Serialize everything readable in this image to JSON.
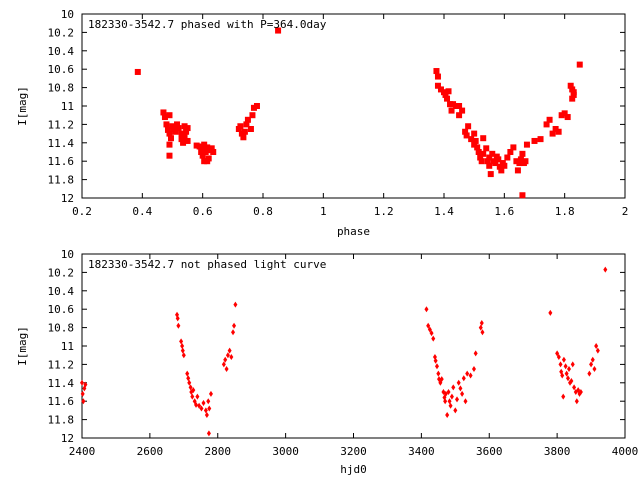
{
  "colors": {
    "points": "#ff0000",
    "axes": "#000000",
    "background": "#ffffff"
  },
  "chart_data": [
    {
      "type": "scatter",
      "title": "182330-3542.7 phased with P=364.0day",
      "xlabel": "phase",
      "ylabel": "I[mag]",
      "xlim": [
        0.2,
        2.0
      ],
      "ylim": [
        10.0,
        12.0
      ],
      "y_inverted": true,
      "xticks": [
        "0.2",
        "0.4",
        "0.6",
        "0.8",
        "1",
        "1.2",
        "1.4",
        "1.6",
        "1.8",
        "2"
      ],
      "yticks": [
        "10",
        "10.2",
        "10.4",
        "10.6",
        "10.8",
        "11",
        "11.2",
        "11.4",
        "11.6",
        "11.8",
        "12"
      ],
      "marker": "filled-square",
      "points": [
        [
          0.385,
          10.63
        ],
        [
          0.47,
          11.07
        ],
        [
          0.475,
          11.12
        ],
        [
          0.48,
          11.2
        ],
        [
          0.485,
          11.26
        ],
        [
          0.49,
          11.3
        ],
        [
          0.495,
          11.35
        ],
        [
          0.49,
          11.42
        ],
        [
          0.49,
          11.54
        ],
        [
          0.49,
          11.1
        ],
        [
          0.5,
          11.22
        ],
        [
          0.505,
          11.25
        ],
        [
          0.51,
          11.28
        ],
        [
          0.515,
          11.2
        ],
        [
          0.52,
          11.24
        ],
        [
          0.53,
          11.3
        ],
        [
          0.53,
          11.36
        ],
        [
          0.535,
          11.4
        ],
        [
          0.54,
          11.22
        ],
        [
          0.54,
          11.34
        ],
        [
          0.545,
          11.28
        ],
        [
          0.55,
          11.24
        ],
        [
          0.55,
          11.38
        ],
        [
          0.58,
          11.43
        ],
        [
          0.59,
          11.44
        ],
        [
          0.595,
          11.5
        ],
        [
          0.6,
          11.46
        ],
        [
          0.6,
          11.54
        ],
        [
          0.605,
          11.42
        ],
        [
          0.61,
          11.5
        ],
        [
          0.615,
          11.45
        ],
        [
          0.62,
          11.48
        ],
        [
          0.63,
          11.46
        ],
        [
          0.605,
          11.6
        ],
        [
          0.615,
          11.6
        ],
        [
          0.62,
          11.57
        ],
        [
          0.635,
          11.5
        ],
        [
          0.72,
          11.25
        ],
        [
          0.725,
          11.22
        ],
        [
          0.73,
          11.3
        ],
        [
          0.735,
          11.34
        ],
        [
          0.74,
          11.28
        ],
        [
          0.745,
          11.2
        ],
        [
          0.75,
          11.15
        ],
        [
          0.76,
          11.25
        ],
        [
          0.765,
          11.1
        ],
        [
          0.77,
          11.02
        ],
        [
          0.78,
          11.0
        ],
        [
          0.85,
          10.18
        ],
        [
          1.375,
          10.62
        ],
        [
          1.38,
          10.68
        ],
        [
          1.38,
          10.78
        ],
        [
          1.39,
          10.82
        ],
        [
          1.4,
          10.85
        ],
        [
          1.405,
          10.88
        ],
        [
          1.41,
          10.92
        ],
        [
          1.415,
          10.84
        ],
        [
          1.42,
          10.98
        ],
        [
          1.425,
          11.05
        ],
        [
          1.43,
          10.98
        ],
        [
          1.44,
          11.0
        ],
        [
          1.45,
          11.0
        ],
        [
          1.45,
          11.1
        ],
        [
          1.46,
          11.05
        ],
        [
          1.47,
          11.28
        ],
        [
          1.475,
          11.32
        ],
        [
          1.48,
          11.22
        ],
        [
          1.49,
          11.36
        ],
        [
          1.5,
          11.3
        ],
        [
          1.5,
          11.42
        ],
        [
          1.505,
          11.38
        ],
        [
          1.51,
          11.45
        ],
        [
          1.515,
          11.5
        ],
        [
          1.52,
          11.56
        ],
        [
          1.525,
          11.6
        ],
        [
          1.53,
          11.35
        ],
        [
          1.53,
          11.52
        ],
        [
          1.54,
          11.46
        ],
        [
          1.545,
          11.6
        ],
        [
          1.55,
          11.56
        ],
        [
          1.55,
          11.65
        ],
        [
          1.555,
          11.74
        ],
        [
          1.56,
          11.52
        ],
        [
          1.565,
          11.6
        ],
        [
          1.57,
          11.62
        ],
        [
          1.575,
          11.55
        ],
        [
          1.58,
          11.58
        ],
        [
          1.585,
          11.66
        ],
        [
          1.59,
          11.7
        ],
        [
          1.595,
          11.62
        ],
        [
          1.6,
          11.65
        ],
        [
          1.61,
          11.56
        ],
        [
          1.62,
          11.5
        ],
        [
          1.63,
          11.45
        ],
        [
          1.64,
          11.6
        ],
        [
          1.645,
          11.7
        ],
        [
          1.65,
          11.62
        ],
        [
          1.655,
          11.58
        ],
        [
          1.66,
          11.52
        ],
        [
          1.665,
          11.62
        ],
        [
          1.66,
          11.97
        ],
        [
          1.67,
          11.6
        ],
        [
          1.675,
          11.42
        ],
        [
          1.7,
          11.38
        ],
        [
          1.72,
          11.36
        ],
        [
          1.74,
          11.2
        ],
        [
          1.75,
          11.15
        ],
        [
          1.76,
          11.3
        ],
        [
          1.77,
          11.25
        ],
        [
          1.78,
          11.28
        ],
        [
          1.79,
          11.1
        ],
        [
          1.8,
          11.08
        ],
        [
          1.81,
          11.12
        ],
        [
          1.82,
          10.78
        ],
        [
          1.825,
          10.82
        ],
        [
          1.83,
          10.88
        ],
        [
          1.825,
          10.92
        ],
        [
          1.83,
          10.85
        ],
        [
          1.85,
          10.55
        ]
      ]
    },
    {
      "type": "scatter",
      "title": "182330-3542.7 not phased light curve",
      "xlabel": "hjd0",
      "ylabel": "I[mag]",
      "xlim": [
        2400,
        4000
      ],
      "ylim": [
        10.0,
        12.0
      ],
      "y_inverted": true,
      "xticks": [
        "2400",
        "2600",
        "2800",
        "3000",
        "3200",
        "3400",
        "3600",
        "3800",
        "4000"
      ],
      "yticks": [
        "10",
        "10.2",
        "10.4",
        "10.6",
        "10.8",
        "11",
        "11.2",
        "11.4",
        "11.6",
        "11.8",
        "12"
      ],
      "marker": "small-diamond",
      "points": [
        [
          2400,
          11.4
        ],
        [
          2402,
          11.52
        ],
        [
          2404,
          11.6
        ],
        [
          2407,
          11.46
        ],
        [
          2410,
          11.42
        ],
        [
          2680,
          10.66
        ],
        [
          2682,
          10.7
        ],
        [
          2684,
          10.78
        ],
        [
          2692,
          10.95
        ],
        [
          2695,
          11.0
        ],
        [
          2697,
          11.05
        ],
        [
          2700,
          11.1
        ],
        [
          2710,
          11.3
        ],
        [
          2713,
          11.35
        ],
        [
          2716,
          11.4
        ],
        [
          2720,
          11.45
        ],
        [
          2722,
          11.5
        ],
        [
          2725,
          11.55
        ],
        [
          2728,
          11.48
        ],
        [
          2732,
          11.6
        ],
        [
          2736,
          11.64
        ],
        [
          2740,
          11.55
        ],
        [
          2745,
          11.65
        ],
        [
          2752,
          11.68
        ],
        [
          2758,
          11.62
        ],
        [
          2765,
          11.7
        ],
        [
          2768,
          11.75
        ],
        [
          2772,
          11.6
        ],
        [
          2775,
          11.68
        ],
        [
          2780,
          11.52
        ],
        [
          2774,
          11.95
        ],
        [
          2818,
          11.2
        ],
        [
          2822,
          11.15
        ],
        [
          2826,
          11.25
        ],
        [
          2830,
          11.1
        ],
        [
          2835,
          11.05
        ],
        [
          2840,
          11.12
        ],
        [
          2845,
          10.85
        ],
        [
          2848,
          10.78
        ],
        [
          2852,
          10.55
        ],
        [
          3415,
          10.6
        ],
        [
          3420,
          10.78
        ],
        [
          3425,
          10.82
        ],
        [
          3430,
          10.86
        ],
        [
          3435,
          10.92
        ],
        [
          3440,
          11.12
        ],
        [
          3442,
          11.16
        ],
        [
          3446,
          11.22
        ],
        [
          3450,
          11.3
        ],
        [
          3452,
          11.36
        ],
        [
          3456,
          11.4
        ],
        [
          3460,
          11.36
        ],
        [
          3465,
          11.5
        ],
        [
          3468,
          11.56
        ],
        [
          3470,
          11.6
        ],
        [
          3472,
          11.52
        ],
        [
          3476,
          11.75
        ],
        [
          3480,
          11.5
        ],
        [
          3483,
          11.6
        ],
        [
          3486,
          11.65
        ],
        [
          3490,
          11.55
        ],
        [
          3494,
          11.45
        ],
        [
          3500,
          11.7
        ],
        [
          3505,
          11.58
        ],
        [
          3510,
          11.4
        ],
        [
          3515,
          11.46
        ],
        [
          3520,
          11.52
        ],
        [
          3525,
          11.35
        ],
        [
          3530,
          11.6
        ],
        [
          3535,
          11.3
        ],
        [
          3545,
          11.32
        ],
        [
          3555,
          11.25
        ],
        [
          3560,
          11.08
        ],
        [
          3575,
          10.8
        ],
        [
          3578,
          10.75
        ],
        [
          3580,
          10.85
        ],
        [
          3780,
          10.64
        ],
        [
          3800,
          11.08
        ],
        [
          3805,
          11.12
        ],
        [
          3810,
          11.2
        ],
        [
          3812,
          11.28
        ],
        [
          3815,
          11.32
        ],
        [
          3818,
          11.55
        ],
        [
          3820,
          11.15
        ],
        [
          3825,
          11.22
        ],
        [
          3828,
          11.3
        ],
        [
          3832,
          11.35
        ],
        [
          3835,
          11.25
        ],
        [
          3838,
          11.4
        ],
        [
          3842,
          11.38
        ],
        [
          3846,
          11.2
        ],
        [
          3850,
          11.45
        ],
        [
          3855,
          11.5
        ],
        [
          3858,
          11.6
        ],
        [
          3862,
          11.48
        ],
        [
          3866,
          11.52
        ],
        [
          3870,
          11.5
        ],
        [
          3895,
          11.3
        ],
        [
          3900,
          11.2
        ],
        [
          3905,
          11.15
        ],
        [
          3910,
          11.25
        ],
        [
          3915,
          11.0
        ],
        [
          3920,
          11.05
        ],
        [
          3942,
          10.17
        ]
      ]
    }
  ]
}
